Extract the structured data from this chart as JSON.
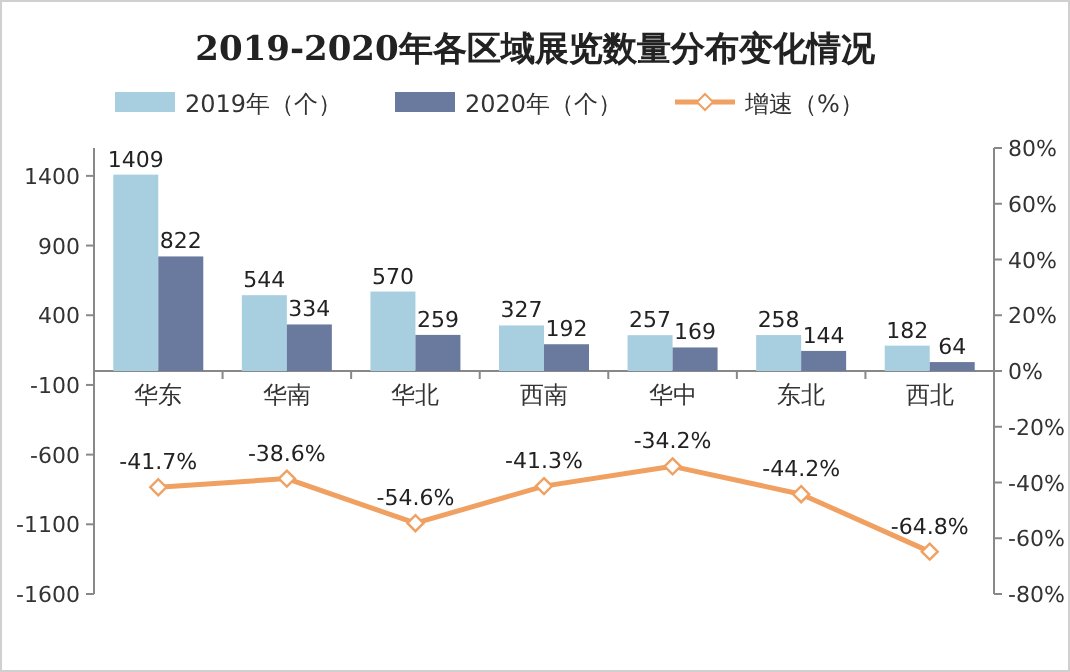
{
  "chart_data": {
    "type": "bar",
    "title": "2019-2020年各区域展览数量分布变化情况",
    "categories": [
      "华东",
      "华南",
      "华北",
      "西南",
      "华中",
      "东北",
      "西北"
    ],
    "series": [
      {
        "name": "2019年（个）",
        "color": "#a8cfe0",
        "values": [
          1409,
          544,
          570,
          327,
          257,
          258,
          182
        ],
        "value_labels": [
          "1409",
          "544",
          "570",
          "327",
          "257",
          "258",
          "182"
        ]
      },
      {
        "name": "2020年（个）",
        "color": "#6a7a9e",
        "values": [
          822,
          334,
          259,
          192,
          169,
          144,
          64
        ],
        "value_labels": [
          "822",
          "334",
          "259",
          "192",
          "169",
          "144",
          "64"
        ]
      },
      {
        "name": "增速（%）",
        "type": "line",
        "axis": "y2",
        "marker": "diamond",
        "color": "#f0a060",
        "values": [
          -41.7,
          -38.6,
          -54.6,
          -41.3,
          -34.2,
          -44.2,
          -64.8
        ],
        "value_labels": [
          "-41.7%",
          "-38.6%",
          "-54.6%",
          "-41.3%",
          "-34.2%",
          "-44.2%",
          "-64.8%"
        ]
      }
    ],
    "ylim": [
      -1600,
      1600
    ],
    "yticks": [
      -1600,
      -1100,
      -600,
      -100,
      400,
      900,
      1400
    ],
    "y2lim": [
      -80,
      80
    ],
    "y2ticks": [
      {
        "value": -80,
        "label": "-80%"
      },
      {
        "value": -60,
        "label": "-60%"
      },
      {
        "value": -40,
        "label": "-40%"
      },
      {
        "value": -20,
        "label": "-20%"
      },
      {
        "value": 0,
        "label": "0%"
      },
      {
        "value": 20,
        "label": "20%"
      },
      {
        "value": 40,
        "label": "40%"
      },
      {
        "value": 60,
        "label": "60%"
      },
      {
        "value": 80,
        "label": "80%"
      }
    ],
    "legend": "top"
  }
}
